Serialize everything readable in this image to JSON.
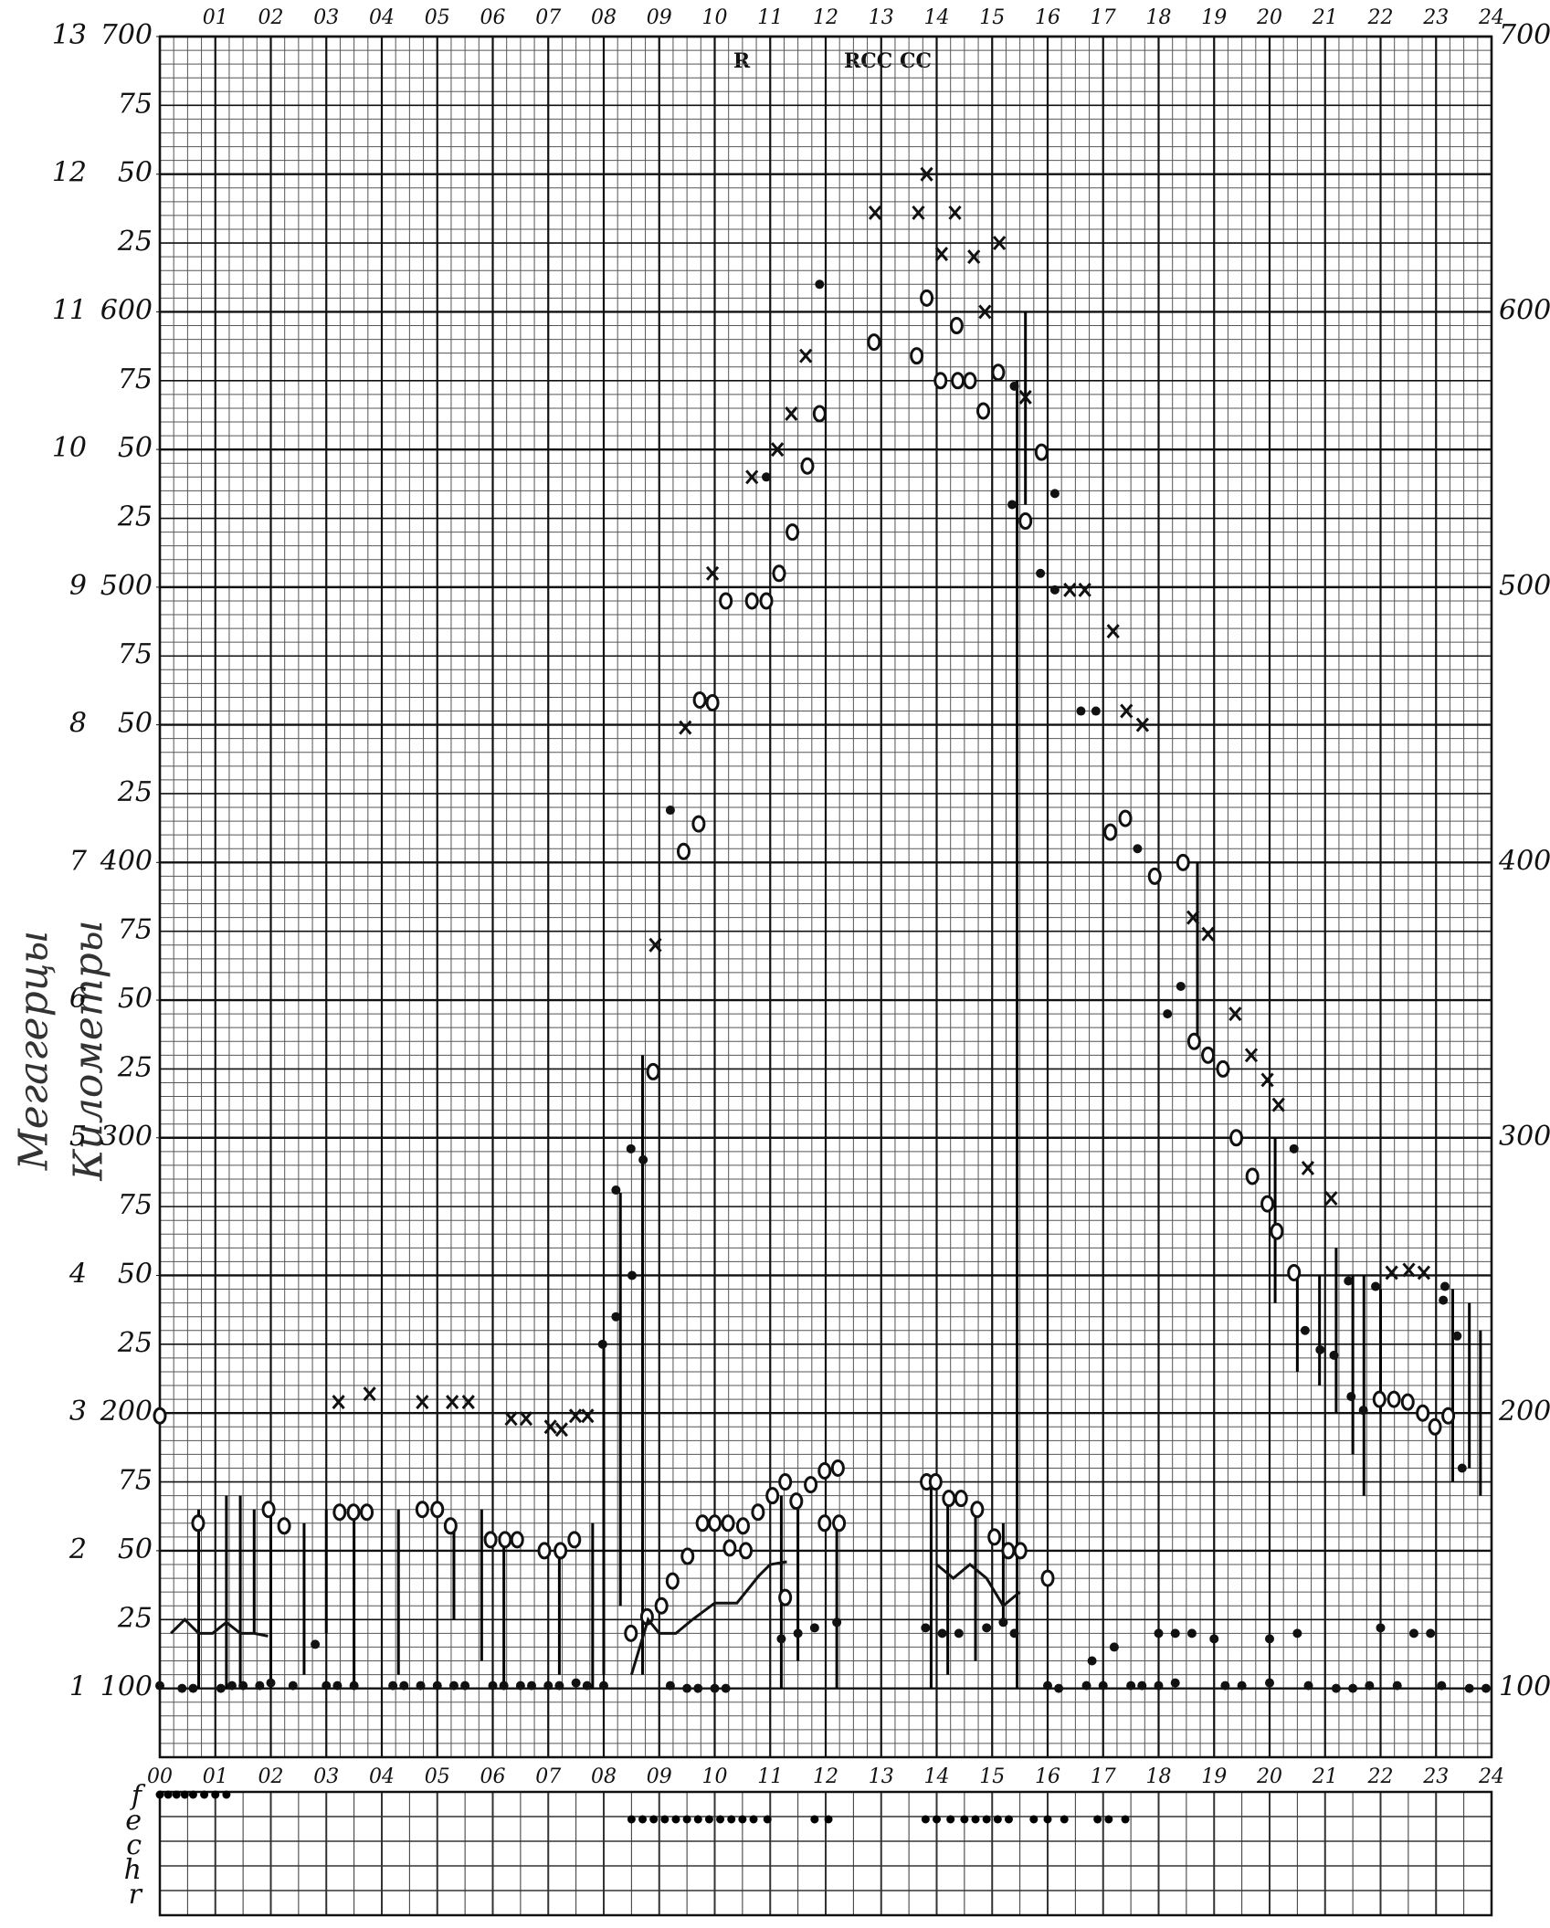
{
  "chart_data": {
    "type": "scatter",
    "y_axis_labels": [
      "Мегагерцы",
      "Километры"
    ],
    "annotations": [
      "R",
      "RCC CC"
    ],
    "xlim": [
      0,
      24
    ],
    "xticks": [
      {
        "value": 0,
        "label": "00"
      },
      {
        "value": 1,
        "label": "01"
      },
      {
        "value": 2,
        "label": "02"
      },
      {
        "value": 3,
        "label": "03"
      },
      {
        "value": 4,
        "label": "04"
      },
      {
        "value": 5,
        "label": "05"
      },
      {
        "value": 6,
        "label": "06"
      },
      {
        "value": 7,
        "label": "07"
      },
      {
        "value": 8,
        "label": "08"
      },
      {
        "value": 9,
        "label": "09"
      },
      10,
      11,
      12,
      13,
      14,
      15,
      16,
      17,
      18,
      19,
      20,
      21,
      22,
      23,
      24
    ],
    "ylim": [
      75,
      700
    ],
    "yticks": [
      100,
      {
        "value": 125,
        "label": "25"
      },
      {
        "value": 150,
        "label": "50"
      },
      {
        "value": 175,
        "label": "75"
      },
      200,
      {
        "value": 225,
        "label": "25"
      },
      {
        "value": 250,
        "label": "50"
      },
      {
        "value": 275,
        "label": "75"
      },
      300,
      {
        "value": 325,
        "label": "25"
      },
      {
        "value": 350,
        "label": "50"
      },
      {
        "value": 375,
        "label": "75"
      },
      400,
      {
        "value": 425,
        "label": "25"
      },
      {
        "value": 450,
        "label": "50"
      },
      {
        "value": 475,
        "label": "75"
      },
      500,
      {
        "value": 525,
        "label": "25"
      },
      {
        "value": 550,
        "label": "50"
      },
      {
        "value": 575,
        "label": "75"
      },
      600,
      {
        "value": 625,
        "label": "25"
      },
      {
        "value": 650,
        "label": "50"
      },
      {
        "value": 675,
        "label": "75"
      },
      700
    ],
    "yticks_right": [
      100,
      200,
      300,
      400,
      500,
      600,
      700
    ],
    "y2lim": [
      0.5,
      13
    ],
    "y2ticks": [
      1,
      2,
      3,
      4,
      5,
      6,
      7,
      8,
      9,
      10,
      11,
      12,
      13
    ],
    "grid": true,
    "grid_minor": {
      "x": 0.25,
      "y": 5
    },
    "series": [
      {
        "marker": "cross",
        "color": "#111",
        "x": [
          3.22,
          3.78,
          4.73,
          5.27,
          5.56,
          6.33,
          6.6,
          7.04,
          7.24,
          7.49,
          7.71,
          8.93,
          9.47,
          9.96,
          10.67,
          11.13,
          11.38,
          11.64,
          12.89,
          13.67,
          13.82,
          14.09,
          14.33,
          14.67,
          14.87,
          15.13,
          15.6,
          16.4,
          16.67,
          17.18,
          17.42,
          17.71,
          18.62,
          18.89,
          19.38,
          19.67,
          19.96,
          20.16,
          20.69,
          21.11,
          22.2,
          22.51,
          22.78
        ],
        "values": [
          204,
          207,
          204,
          204,
          204,
          198,
          198,
          195,
          194,
          199,
          199,
          370,
          449,
          505,
          540,
          550,
          563,
          584,
          636,
          636,
          650,
          621,
          636,
          620,
          600,
          625,
          569,
          499,
          499,
          484,
          455,
          450,
          380,
          374,
          345,
          330,
          321,
          312,
          289,
          278,
          251,
          252,
          251
        ]
      },
      {
        "marker": "circle",
        "color": "#111",
        "x": [
          0,
          0.69,
          1.96,
          2.24,
          3.24,
          3.49,
          3.73,
          4.73,
          5,
          5.24,
          5.96,
          6.22,
          6.44,
          6.93,
          7.22,
          7.47,
          8.49,
          8.78,
          9.04,
          9.24,
          9.51,
          9.78,
          10,
          10.27,
          10.51,
          10.78,
          11.04,
          11.27,
          11.47,
          11.73,
          11.98,
          12.22,
          11.98,
          12.24,
          10.56,
          10.24,
          8.89,
          9.44,
          9.71,
          9.73,
          9.96,
          10.2,
          10.67,
          10.93,
          11.16,
          11.4,
          11.67,
          11.89,
          12.87,
          13.64,
          13.82,
          14.36,
          14.07,
          14.38,
          14.6,
          14.84,
          15.11,
          15.6,
          15.89,
          17.13,
          17.4,
          17.93,
          18.44,
          18.64,
          18.89,
          19.16,
          19.4,
          19.69,
          19.96,
          20.13,
          20.44,
          21.98,
          22.24,
          22.49,
          22.76,
          22.98,
          23.22,
          13.82,
          13.98,
          14.22,
          14.44,
          14.73,
          15.04,
          15.29,
          15.51,
          16,
          11.27
        ],
        "values": [
          199,
          160,
          165,
          159,
          164,
          164,
          164,
          165,
          165,
          159,
          154,
          154,
          154,
          150,
          150,
          154,
          120,
          126,
          130,
          139,
          148,
          160,
          160,
          151,
          159,
          164,
          170,
          175,
          168,
          174,
          179,
          180,
          160,
          160,
          150,
          160,
          324,
          404,
          414,
          459,
          458,
          495,
          495,
          495,
          505,
          520,
          544,
          563,
          589,
          584,
          605,
          595,
          575,
          575,
          575,
          564,
          578,
          524,
          549,
          411,
          416,
          395,
          400,
          335,
          330,
          325,
          300,
          286,
          276,
          266,
          251,
          205,
          205,
          204,
          200,
          195,
          199,
          175,
          175,
          169,
          169,
          165,
          155,
          150,
          150,
          140,
          133
        ]
      },
      {
        "marker": "dot",
        "color": "#111",
        "x": [
          7.98,
          8.22,
          8.22,
          8.49,
          8.71,
          8.51,
          9.2,
          10.93,
          11.89,
          15.4,
          15.36,
          15.87,
          16.13,
          16.13,
          16.6,
          16.87,
          17.62,
          18.16,
          18.4,
          20.44,
          20.64,
          20.91,
          21.16,
          21.47,
          21.69,
          21.42,
          21.91,
          23.13,
          23.38,
          23.47,
          23.16,
          0,
          0.4,
          0.6,
          1.1,
          1.3,
          1.5,
          1.8,
          2.0,
          2.4,
          3.0,
          3.2,
          3.5,
          4.2,
          4.4,
          4.7,
          5.0,
          5.3,
          5.5,
          6.0,
          6.2,
          6.5,
          6.7,
          7.0,
          7.2,
          7.5,
          7.7,
          8.0,
          9.2,
          9.5,
          9.7,
          10.0,
          10.2,
          16.0,
          16.2,
          16.7,
          17.0,
          17.5,
          17.7,
          18.0,
          18.3,
          19.2,
          19.5,
          20.0,
          20.7,
          21.2,
          21.5,
          21.8,
          22.3,
          23.1,
          23.6,
          23.9,
          2.8,
          11.2,
          11.5,
          11.8,
          12.2,
          13.8,
          14.1,
          14.4,
          14.9,
          15.2,
          15.4,
          16.8,
          17.2,
          18.0,
          18.3,
          18.6,
          19.0,
          20.0,
          20.5,
          22.0,
          22.6,
          22.9
        ],
        "values": [
          225,
          235,
          281,
          296,
          292,
          250,
          419,
          540,
          610,
          573,
          530,
          505,
          534,
          499,
          455,
          455,
          405,
          345,
          355,
          296,
          230,
          223,
          221,
          206,
          201,
          248,
          246,
          241,
          228,
          180,
          246,
          101,
          100,
          100,
          100,
          101,
          101,
          101,
          102,
          101,
          101,
          101,
          101,
          101,
          101,
          101,
          101,
          101,
          101,
          101,
          101,
          101,
          101,
          101,
          101,
          102,
          101,
          101,
          101,
          100,
          100,
          100,
          100,
          101,
          100,
          101,
          101,
          101,
          101,
          101,
          102,
          101,
          101,
          102,
          101,
          100,
          100,
          101,
          101,
          101,
          100,
          100,
          116,
          118,
          120,
          122,
          124,
          122,
          120,
          120,
          122,
          124,
          120,
          110,
          115,
          120,
          120,
          120,
          118,
          118,
          120,
          122,
          120,
          120
        ]
      },
      {
        "marker": "line",
        "color": "#111",
        "x": [
          0.2,
          0.45,
          0.7,
          0.95,
          1.2,
          1.45,
          1.7,
          1.95,
          8.0,
          8.5,
          8.8,
          9.0,
          9.3,
          9.6,
          10.0,
          10.4,
          10.8,
          11.0,
          11.3,
          13.7,
          14.0,
          14.3,
          14.6,
          14.9,
          15.2,
          15.5
        ],
        "values": [
          120,
          125,
          120,
          120,
          124,
          120,
          120,
          119,
          null,
          105,
          125,
          120,
          120,
          125,
          131,
          131,
          141,
          145,
          146,
          null,
          145,
          140,
          145,
          140,
          130,
          135
        ]
      }
    ],
    "spreads": {
      "x": [
        0.7,
        1.2,
        1.45,
        1.7,
        2.0,
        2.6,
        3.0,
        3.5,
        4.3,
        5.3,
        5.8,
        6.2,
        7.2,
        7.8,
        8.0,
        8.3,
        8.7,
        11.2,
        11.5,
        12.2,
        13.9,
        14.2,
        14.7,
        15.2,
        15.45,
        15.6,
        18.7,
        20.1,
        20.5,
        20.9,
        21.2,
        21.5,
        21.7,
        22.0,
        23.3,
        23.6,
        23.8
      ],
      "lo": [
        100,
        100,
        100,
        120,
        100,
        105,
        120,
        100,
        105,
        125,
        110,
        100,
        105,
        100,
        105,
        130,
        105,
        100,
        110,
        100,
        100,
        105,
        110,
        125,
        100,
        530,
        335,
        240,
        215,
        210,
        200,
        185,
        170,
        200,
        175,
        180,
        170
      ],
      "hi": [
        165,
        170,
        170,
        165,
        165,
        160,
        165,
        165,
        165,
        160,
        165,
        155,
        150,
        160,
        225,
        280,
        330,
        170,
        165,
        160,
        175,
        170,
        165,
        160,
        575,
        600,
        400,
        300,
        250,
        250,
        260,
        250,
        250,
        245,
        245,
        240,
        230
      ]
    },
    "strip": {
      "rows": [
        "f",
        "e",
        "c",
        "h",
        "r"
      ],
      "marks": [
        {
          "row": 0,
          "x": [
            0,
            0.15,
            0.3,
            0.45,
            0.6,
            0.8,
            1.0,
            1.2
          ]
        },
        {
          "row": 1,
          "x": [
            8.5,
            8.7,
            8.9,
            9.1,
            9.3,
            9.5,
            9.7,
            9.9,
            10.1,
            10.3,
            10.5,
            10.7,
            10.95,
            11.8,
            12.05,
            13.8,
            14.0,
            14.25,
            14.5,
            14.7,
            14.9,
            15.1,
            15.3,
            15.75,
            16.0,
            16.3,
            16.9,
            17.1,
            17.4
          ]
        }
      ]
    }
  }
}
